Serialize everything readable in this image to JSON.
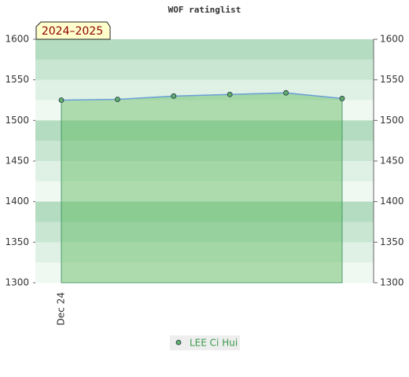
{
  "chart_data": {
    "type": "area-line",
    "title": "WOF ratinglist",
    "annotation": "2024–2025",
    "categories": [
      "Dec 24",
      null,
      null,
      null,
      null,
      null
    ],
    "series": [
      {
        "name": "LEE Ci Hui",
        "color": "#5fae6b",
        "line_color": "#6a9fd8",
        "fill_color": "#5cb85c",
        "values": [
          1525,
          1526,
          1530,
          1532,
          1534,
          1527
        ]
      }
    ],
    "ylim": [
      1300,
      1600
    ],
    "yticks": [
      1300,
      1350,
      1400,
      1450,
      1500,
      1550,
      1600
    ],
    "y2lim": [
      1300,
      1600
    ],
    "y2ticks": [
      1300,
      1350,
      1400,
      1450,
      1500,
      1550,
      1600
    ],
    "legend": "bottom"
  }
}
